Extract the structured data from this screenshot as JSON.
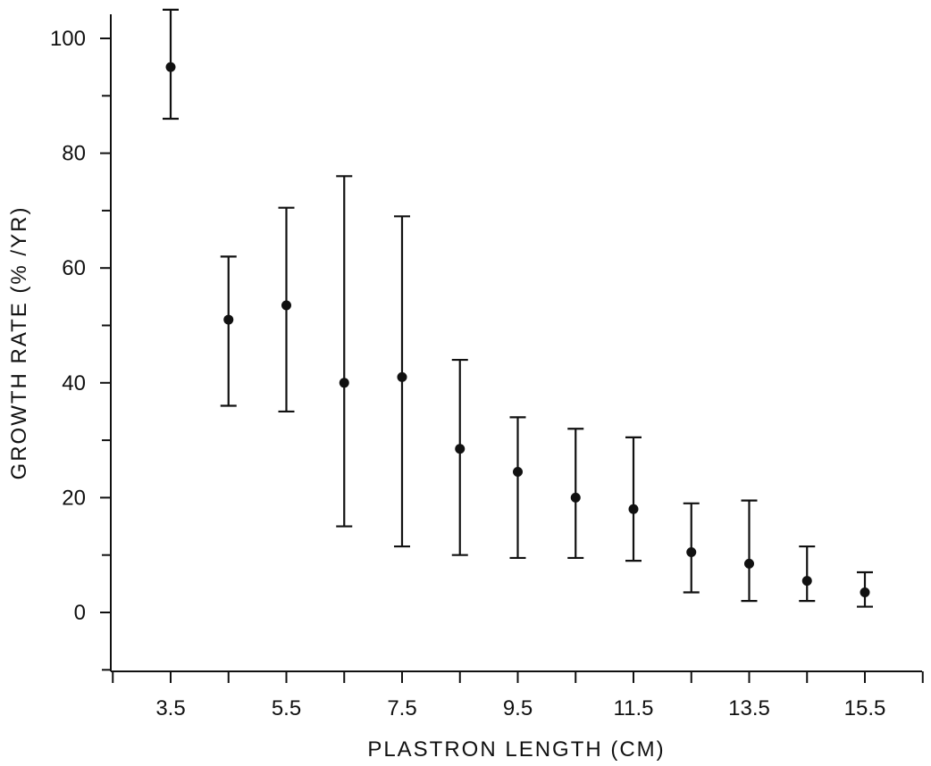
{
  "chart_data": {
    "type": "scatter",
    "title": "",
    "xlabel": "PLASTRON LENGTH (CM)",
    "ylabel": "GROWTH RATE (% /YR)",
    "x_tick_labels": [
      "3.5",
      "5.5",
      "7.5",
      "9.5",
      "11.5",
      "13.5",
      "15.5"
    ],
    "y_tick_labels": [
      "0",
      "20",
      "40",
      "60",
      "80",
      "100"
    ],
    "x_ticks_minor_step": 1,
    "xlim": [
      1.5,
      16.5
    ],
    "ylim": [
      -10,
      110
    ],
    "grid": false,
    "legend": "none",
    "color": "#111111",
    "series": [
      {
        "points": [
          {
            "x": 3.5,
            "y": 95.0,
            "y_low": 86.0,
            "y_high": 105.0
          },
          {
            "x": 4.5,
            "y": 51.0,
            "y_low": 36.0,
            "y_high": 62.0
          },
          {
            "x": 5.5,
            "y": 53.5,
            "y_low": 35.0,
            "y_high": 70.5
          },
          {
            "x": 6.5,
            "y": 40.0,
            "y_low": 15.0,
            "y_high": 76.0
          },
          {
            "x": 7.5,
            "y": 41.0,
            "y_low": 11.5,
            "y_high": 69.0
          },
          {
            "x": 8.5,
            "y": 28.5,
            "y_low": 10.0,
            "y_high": 44.0
          },
          {
            "x": 9.5,
            "y": 24.5,
            "y_low": 9.5,
            "y_high": 34.0
          },
          {
            "x": 10.5,
            "y": 20.0,
            "y_low": 9.5,
            "y_high": 32.0
          },
          {
            "x": 11.5,
            "y": 18.0,
            "y_low": 9.0,
            "y_high": 30.5
          },
          {
            "x": 12.5,
            "y": 10.5,
            "y_low": 3.5,
            "y_high": 19.0
          },
          {
            "x": 13.5,
            "y": 8.5,
            "y_low": 2.0,
            "y_high": 19.5
          },
          {
            "x": 14.5,
            "y": 5.5,
            "y_low": 2.0,
            "y_high": 11.5
          },
          {
            "x": 15.5,
            "y": 3.5,
            "y_low": 1.0,
            "y_high": 7.0
          }
        ]
      }
    ]
  }
}
